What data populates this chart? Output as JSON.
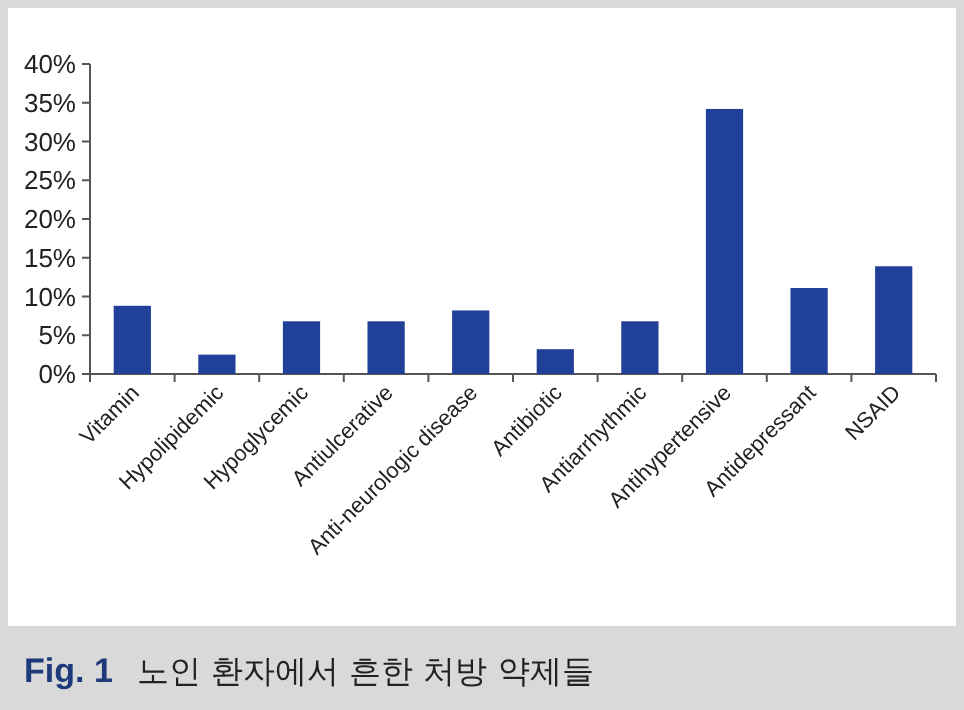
{
  "chart_data": {
    "type": "bar",
    "categories": [
      "Vitamin",
      "Hypolipidemic",
      "Hypoglycemic",
      "Antiulcerative",
      "Anti-neurologic disease",
      "Antibiotic",
      "Antiarrhythmic",
      "Antihypertensive",
      "Antidepressant",
      "NSAID"
    ],
    "values": [
      8.8,
      2.5,
      6.8,
      6.8,
      8.2,
      3.2,
      6.8,
      34.2,
      11.1,
      13.9
    ],
    "color": "#21409a",
    "ylim": [
      0,
      40
    ],
    "yticks": [
      {
        "value": 0,
        "label": "0%"
      },
      {
        "value": 5,
        "label": "5%"
      },
      {
        "value": 10,
        "label": "10%"
      },
      {
        "value": 15,
        "label": "15%"
      },
      {
        "value": 20,
        "label": "20%"
      },
      {
        "value": 25,
        "label": "25%"
      },
      {
        "value": 30,
        "label": "30%"
      },
      {
        "value": 35,
        "label": "35%"
      },
      {
        "value": 40,
        "label": "40%"
      }
    ],
    "annotations": [
      "Fig. 1",
      "노인 환자에서 흔한 처방 약제들"
    ]
  }
}
